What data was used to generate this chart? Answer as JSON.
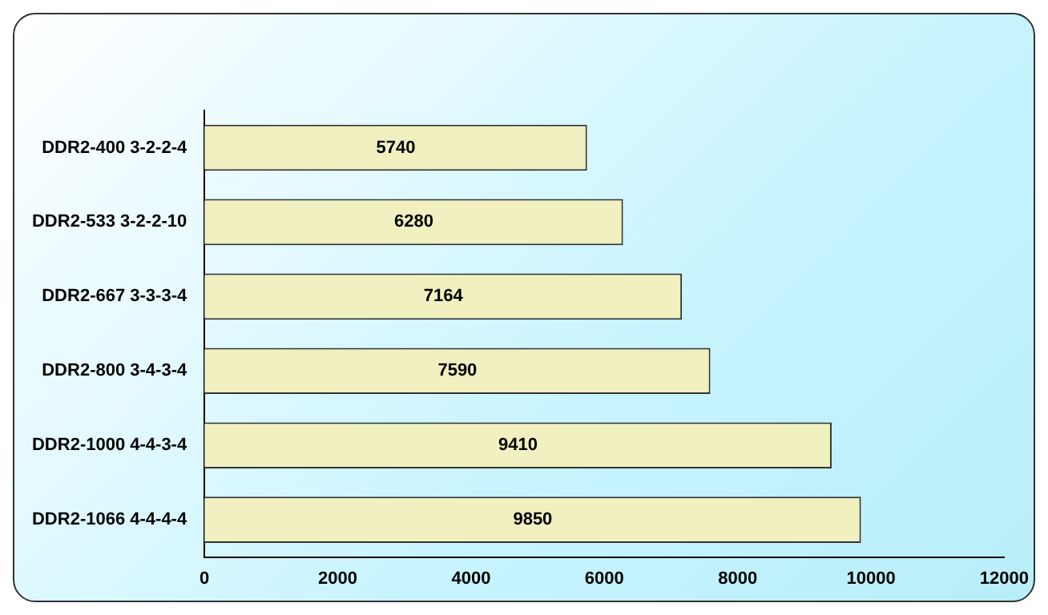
{
  "chart_data": {
    "type": "bar",
    "orientation": "horizontal",
    "categories": [
      "DDR2-400 3-2-2-4",
      "DDR2-533 3-2-2-10",
      "DDR2-667 3-3-3-4",
      "DDR2-800 3-4-3-4",
      "DDR2-1000 4-4-3-4",
      "DDR2-1066 4-4-4-4"
    ],
    "values": [
      5740,
      6280,
      7164,
      7590,
      9410,
      9850
    ],
    "color": "#f0f0c0",
    "xlim": [
      0,
      12000
    ],
    "xticks": [
      0,
      2000,
      4000,
      6000,
      8000,
      10000,
      12000
    ],
    "grid": false,
    "legend": false,
    "data_labels": true
  }
}
